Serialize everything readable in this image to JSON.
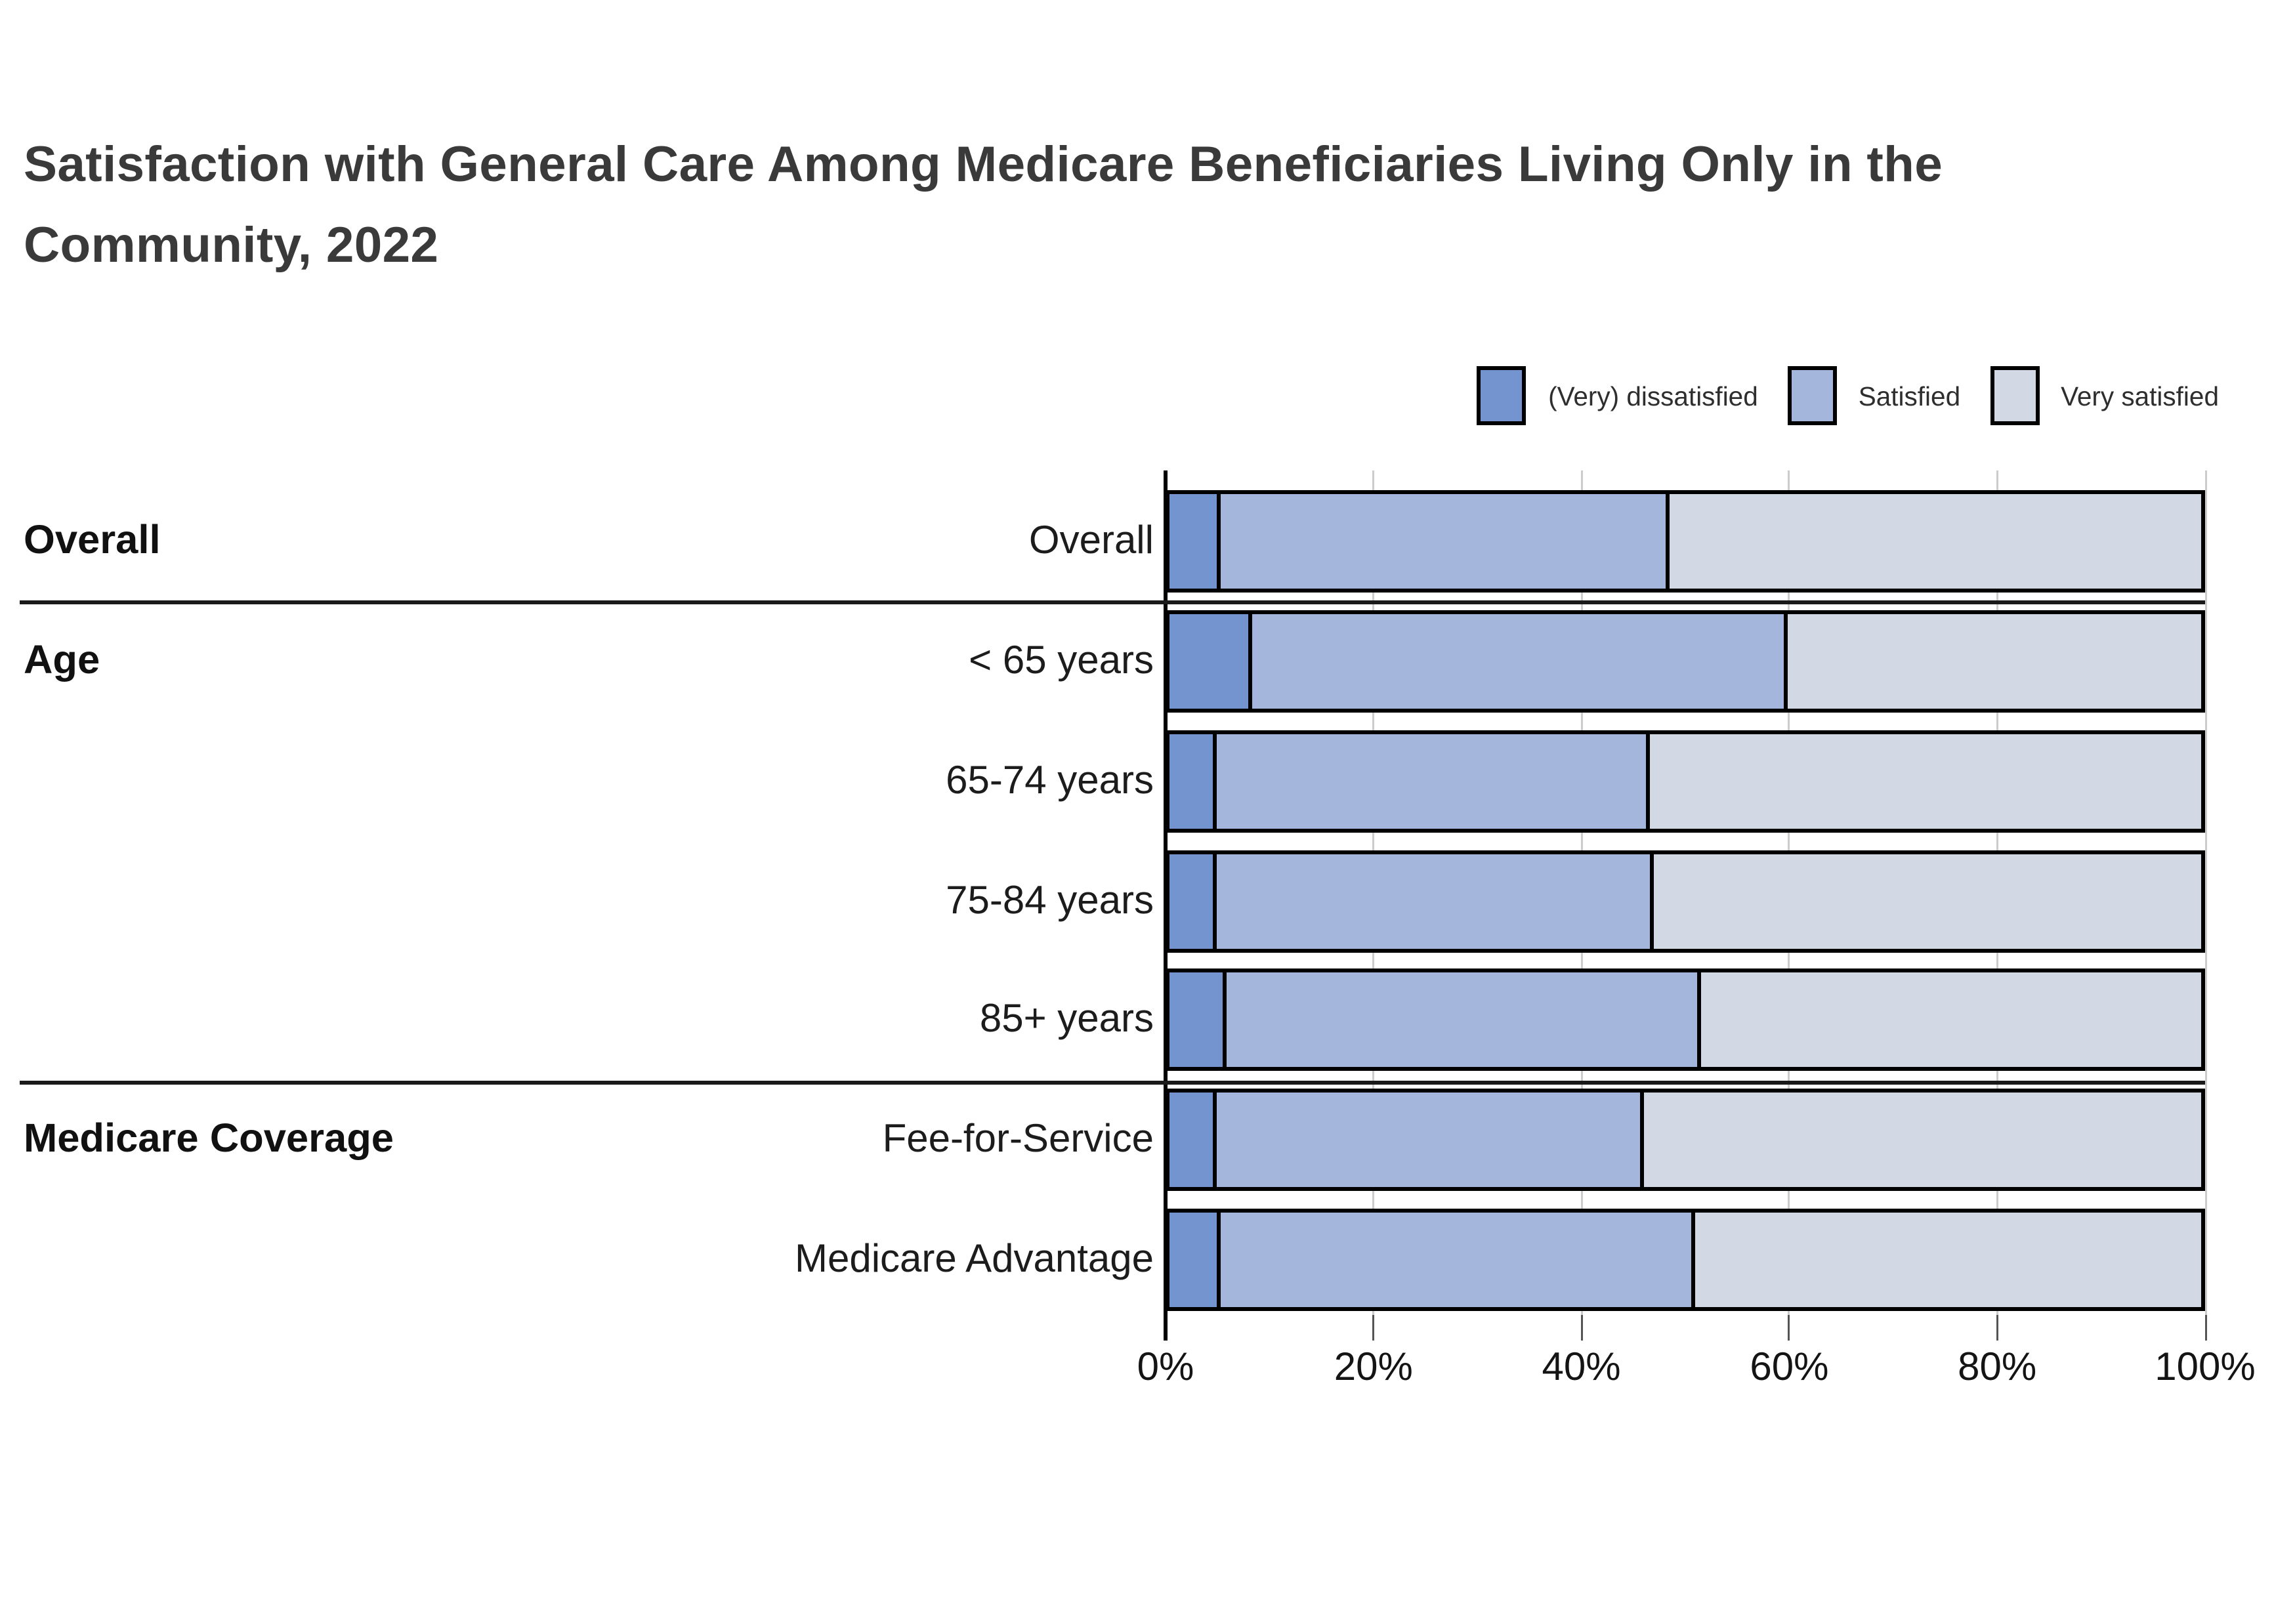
{
  "title": "Satisfaction with General Care Among Medicare Beneficiaries Living Only in the Community, 2022",
  "legend": {
    "items": [
      {
        "label": "(Very) dissatisfied",
        "color": "#7394CE"
      },
      {
        "label": "Satisfied",
        "color": "#A4B6DB"
      },
      {
        "label": "Very satisfied",
        "color": "#D3D9E4"
      }
    ]
  },
  "groups": [
    {
      "label": "Overall",
      "rows": [
        "Overall"
      ]
    },
    {
      "label": "Age",
      "rows": [
        "< 65 years",
        "65-74 years",
        "75-84 years",
        "85+ years"
      ]
    },
    {
      "label": "Medicare Coverage",
      "rows": [
        "Fee-for-Service",
        "Medicare Advantage"
      ]
    }
  ],
  "chart_data": {
    "type": "bar",
    "subtype": "horizontal_stacked_100_percent",
    "title": "Satisfaction with General Care Among Medicare Beneficiaries Living Only in the Community, 2022",
    "categories": [
      "Overall",
      "< 65 years",
      "65-74 years",
      "75-84 years",
      "85+ years",
      "Fee-for-Service",
      "Medicare Advantage"
    ],
    "category_groups": [
      {
        "group": "Overall",
        "categories": [
          "Overall"
        ]
      },
      {
        "group": "Age",
        "categories": [
          "< 65 years",
          "65-74 years",
          "75-84 years",
          "85+ years"
        ]
      },
      {
        "group": "Medicare Coverage",
        "categories": [
          "Fee-for-Service",
          "Medicare Advantage"
        ]
      }
    ],
    "series": [
      {
        "name": "(Very) dissatisfied",
        "color": "#7394CE",
        "values": [
          5,
          8,
          4.5,
          4.5,
          5.5,
          4.5,
          5
        ]
      },
      {
        "name": "Satisfied",
        "color": "#A4B6DB",
        "values": [
          43.5,
          52,
          42,
          42.5,
          46,
          41.5,
          46
        ]
      },
      {
        "name": "Very satisfied",
        "color": "#D3D9E4",
        "values": [
          51.5,
          40,
          53.5,
          53,
          48.5,
          54,
          49
        ]
      }
    ],
    "xlabel": "",
    "ylabel": "",
    "x_ticks": [
      "0%",
      "20%",
      "40%",
      "60%",
      "80%",
      "100%"
    ],
    "x_tick_values": [
      0,
      20,
      40,
      60,
      80,
      100
    ],
    "xlim": [
      0,
      100
    ],
    "grid": "vertical",
    "legend_position": "top-right",
    "bar_border_color": "#000000"
  }
}
